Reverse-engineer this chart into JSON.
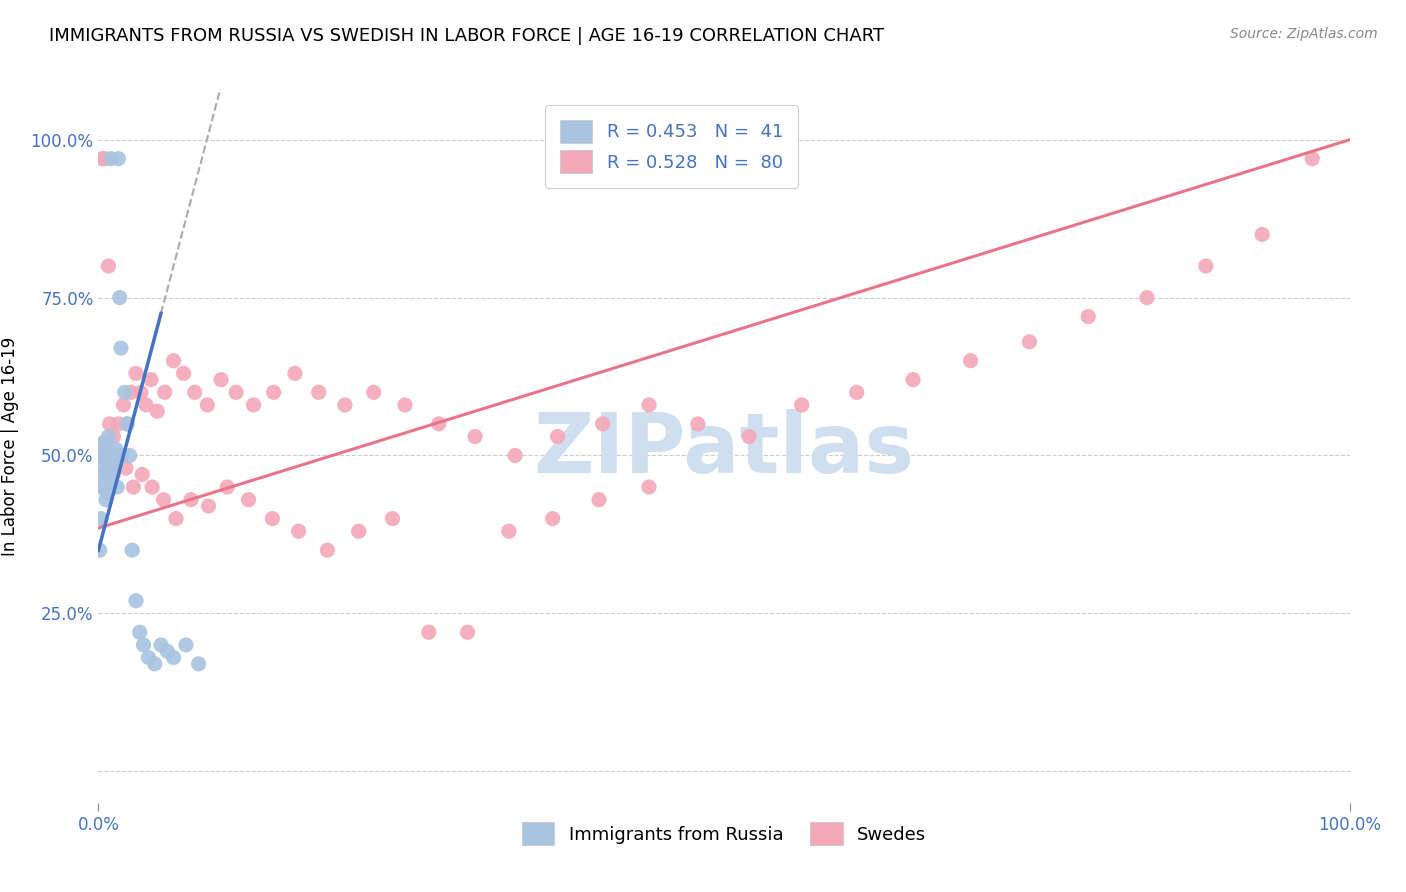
{
  "title": "IMMIGRANTS FROM RUSSIA VS SWEDISH IN LABOR FORCE | AGE 16-19 CORRELATION CHART",
  "source": "Source: ZipAtlas.com",
  "ylabel": "In Labor Force | Age 16-19",
  "xlim": [
    0.0,
    1.0
  ],
  "ylim": [
    -0.05,
    1.08
  ],
  "xtick_labels": [
    "0.0%",
    "100.0%"
  ],
  "xtick_positions": [
    0.0,
    1.0
  ],
  "ytick_labels": [
    "25.0%",
    "50.0%",
    "75.0%",
    "100.0%"
  ],
  "ytick_positions": [
    0.25,
    0.5,
    0.75,
    1.0
  ],
  "watermark": "ZIPatlas",
  "russia_R": 0.453,
  "russia_N": 41,
  "swedes_R": 0.528,
  "swedes_N": 80,
  "russia_scatter_x": [
    0.001,
    0.002,
    0.002,
    0.003,
    0.003,
    0.004,
    0.004,
    0.005,
    0.005,
    0.006,
    0.006,
    0.007,
    0.007,
    0.008,
    0.008,
    0.009,
    0.01,
    0.01,
    0.011,
    0.012,
    0.013,
    0.014,
    0.015,
    0.016,
    0.017,
    0.018,
    0.019,
    0.021,
    0.023,
    0.025,
    0.027,
    0.03,
    0.033,
    0.036,
    0.04,
    0.045,
    0.05,
    0.055,
    0.06,
    0.07,
    0.08
  ],
  "russia_scatter_y": [
    0.35,
    0.4,
    0.45,
    0.48,
    0.5,
    0.47,
    0.52,
    0.45,
    0.5,
    0.43,
    0.46,
    0.51,
    0.44,
    0.49,
    0.53,
    0.46,
    0.5,
    0.97,
    0.47,
    0.5,
    0.48,
    0.51,
    0.45,
    0.97,
    0.75,
    0.67,
    0.5,
    0.6,
    0.55,
    0.5,
    0.35,
    0.27,
    0.22,
    0.2,
    0.18,
    0.17,
    0.2,
    0.19,
    0.18,
    0.2,
    0.17
  ],
  "swedes_scatter_x": [
    0.002,
    0.003,
    0.004,
    0.005,
    0.006,
    0.007,
    0.008,
    0.009,
    0.01,
    0.011,
    0.012,
    0.014,
    0.016,
    0.018,
    0.02,
    0.023,
    0.026,
    0.03,
    0.034,
    0.038,
    0.042,
    0.047,
    0.053,
    0.06,
    0.068,
    0.077,
    0.087,
    0.098,
    0.11,
    0.124,
    0.14,
    0.157,
    0.176,
    0.197,
    0.22,
    0.245,
    0.272,
    0.301,
    0.333,
    0.367,
    0.403,
    0.44,
    0.479,
    0.52,
    0.562,
    0.606,
    0.651,
    0.697,
    0.744,
    0.791,
    0.838,
    0.885,
    0.93,
    0.97,
    0.003,
    0.005,
    0.008,
    0.012,
    0.017,
    0.022,
    0.028,
    0.035,
    0.043,
    0.052,
    0.062,
    0.074,
    0.088,
    0.103,
    0.12,
    0.139,
    0.16,
    0.183,
    0.208,
    0.235,
    0.264,
    0.295,
    0.328,
    0.363,
    0.4,
    0.44
  ],
  "swedes_scatter_y": [
    0.5,
    0.97,
    0.5,
    0.97,
    0.5,
    0.5,
    0.8,
    0.55,
    0.5,
    0.48,
    0.53,
    0.5,
    0.55,
    0.5,
    0.58,
    0.55,
    0.6,
    0.63,
    0.6,
    0.58,
    0.62,
    0.57,
    0.6,
    0.65,
    0.63,
    0.6,
    0.58,
    0.62,
    0.6,
    0.58,
    0.6,
    0.63,
    0.6,
    0.58,
    0.6,
    0.58,
    0.55,
    0.53,
    0.5,
    0.53,
    0.55,
    0.58,
    0.55,
    0.53,
    0.58,
    0.6,
    0.62,
    0.65,
    0.68,
    0.72,
    0.75,
    0.8,
    0.85,
    0.97,
    0.5,
    0.52,
    0.48,
    0.47,
    0.5,
    0.48,
    0.45,
    0.47,
    0.45,
    0.43,
    0.4,
    0.43,
    0.42,
    0.45,
    0.43,
    0.4,
    0.38,
    0.35,
    0.38,
    0.4,
    0.22,
    0.22,
    0.38,
    0.4,
    0.43,
    0.45
  ],
  "russia_line_color": "#4472c4",
  "russia_line_dashed_color": "#aaaaaa",
  "swedes_line_color": "#e8748a",
  "russia_scatter_color": "#a8c4e0",
  "swedes_scatter_color": "#f4a8b8",
  "scatter_size": 120,
  "background_color": "#ffffff",
  "grid_color": "#cccccc",
  "title_fontsize": 13,
  "axis_label_color": "#4472c4",
  "watermark_color": "#d0dff0",
  "watermark_fontsize": 60,
  "legend_label_color": "#4472c4"
}
